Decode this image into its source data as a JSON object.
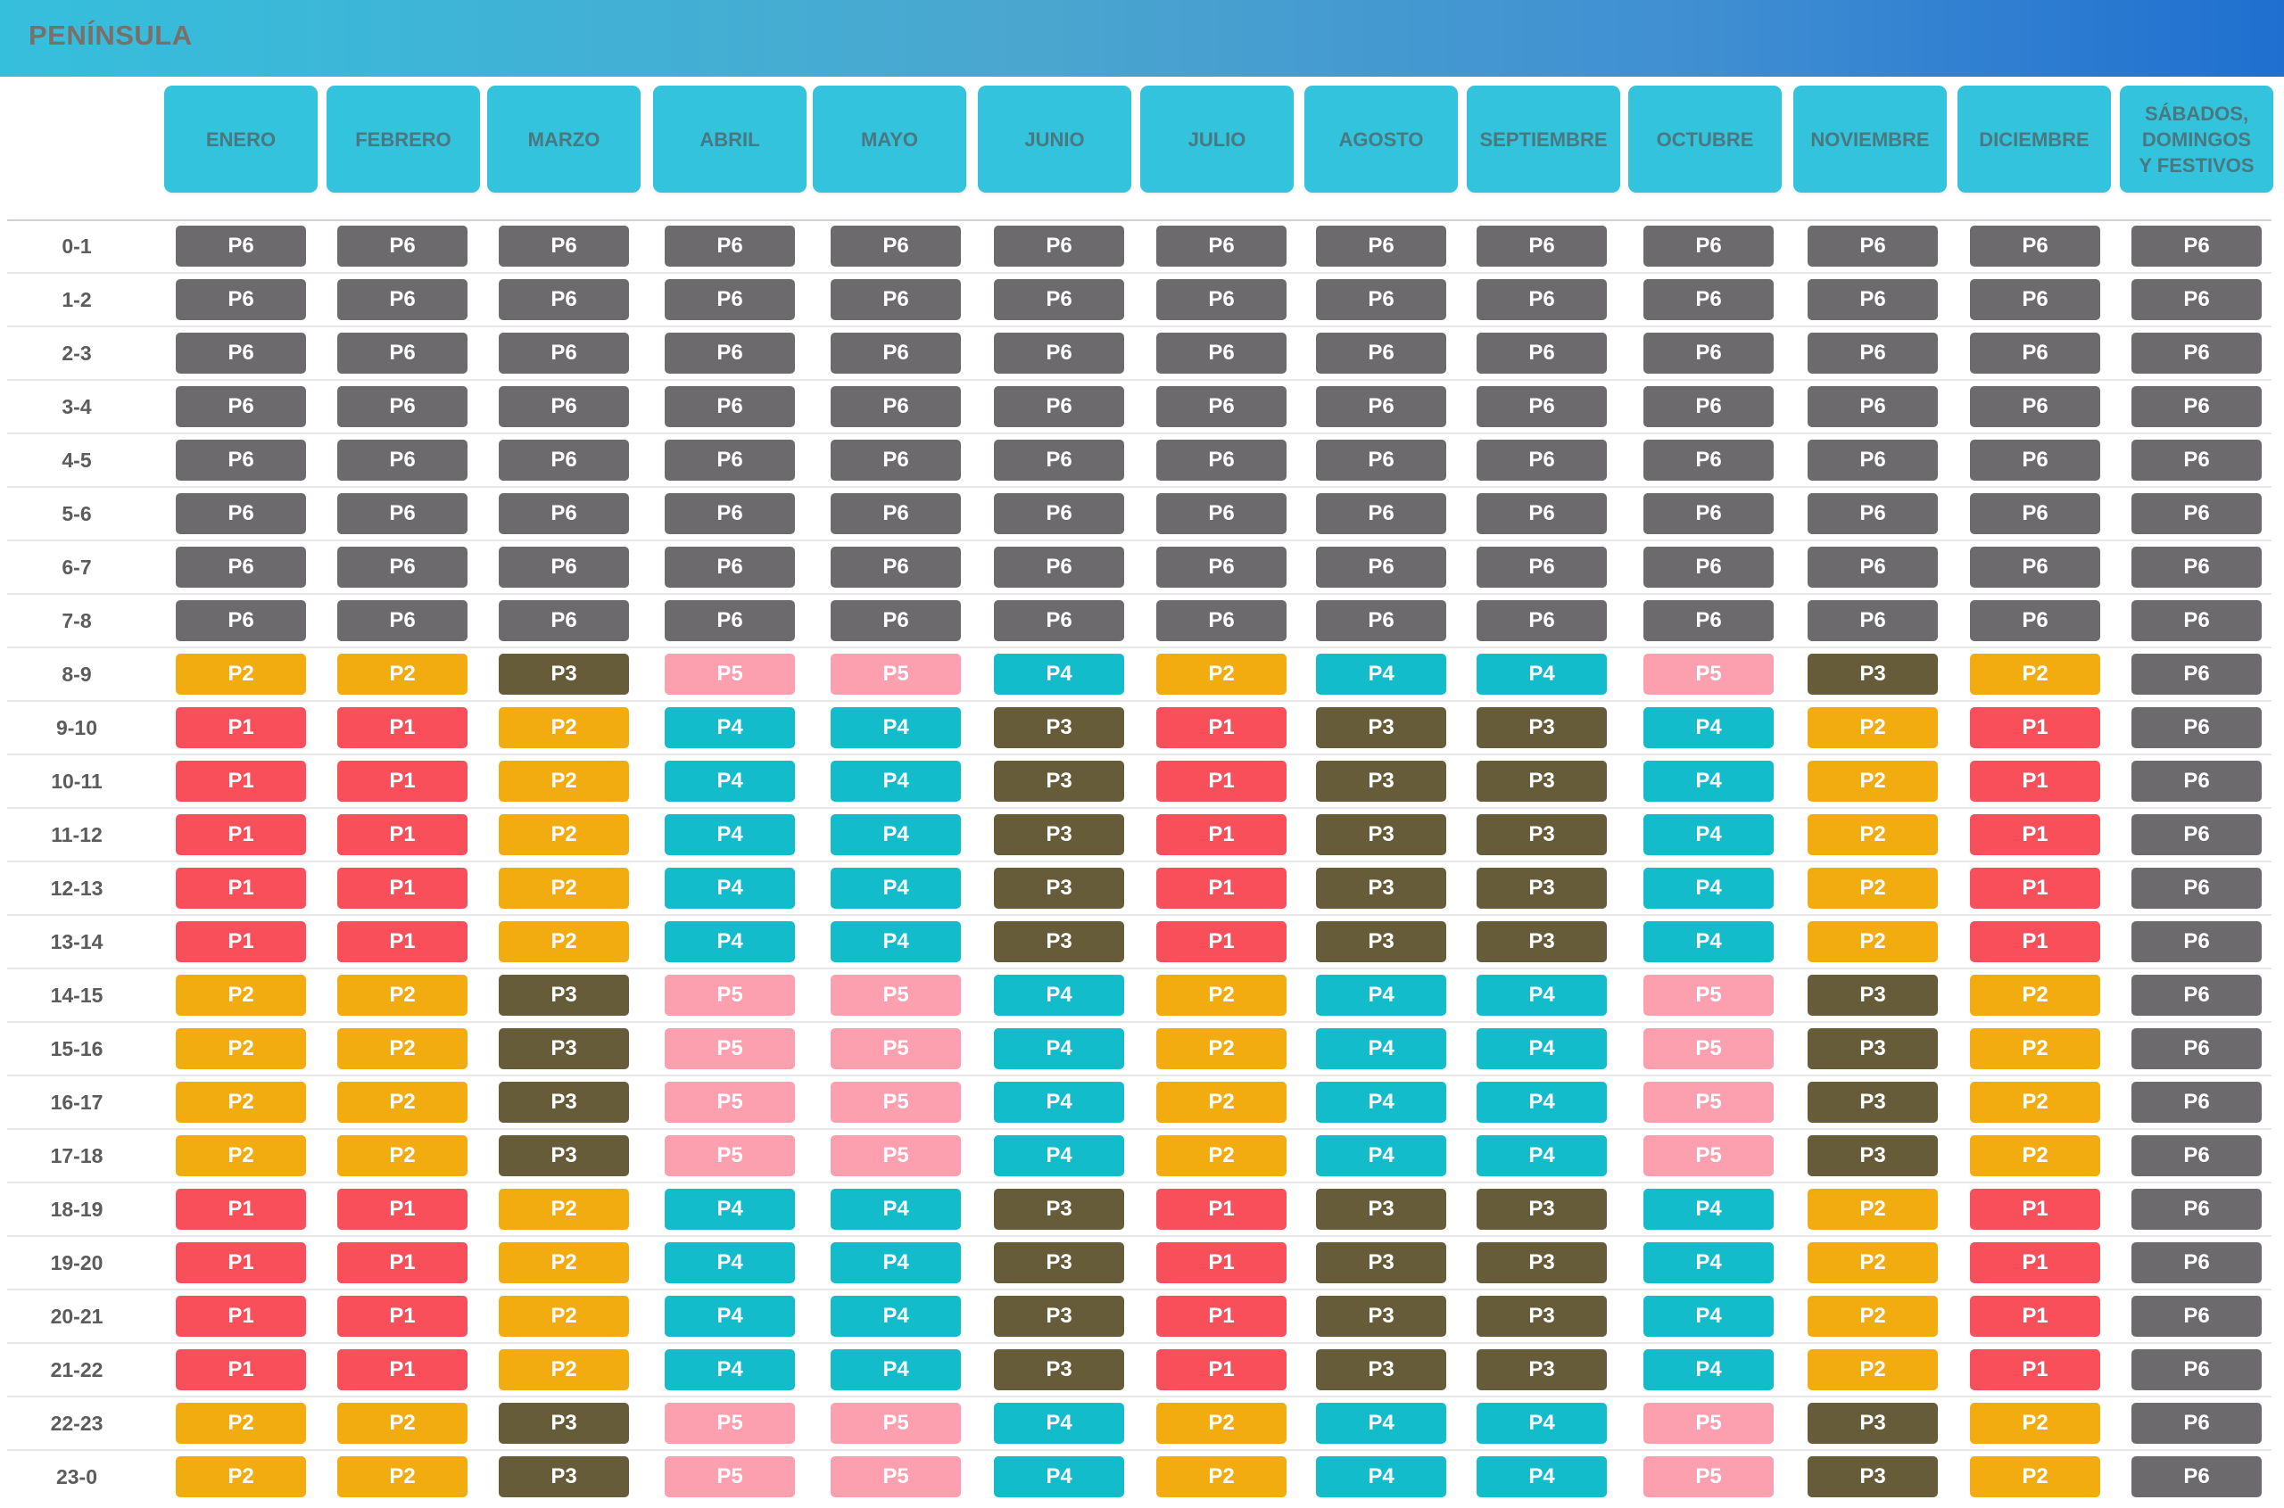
{
  "header": {
    "title": "PENÍNSULA"
  },
  "colors": {
    "P1": "#f94f5b",
    "P2": "#f3ac10",
    "P3": "#665c3a",
    "P4": "#12bccb",
    "P5": "#fc9faf",
    "P6": "#6d6a6e"
  },
  "columns": [
    "ENERO",
    "FEBRERO",
    "MARZO",
    "ABRIL",
    "MAYO",
    "JUNIO",
    "JULIO",
    "AGOSTO",
    "SEPTIEMBRE",
    "OCTUBRE",
    "NOVIEMBRE",
    "DICIEMBRE",
    "SÁBADOS, DOMINGOS Y FESTIVOS"
  ],
  "column_lines": [
    [
      "ENERO"
    ],
    [
      "FEBRERO"
    ],
    [
      "MARZO"
    ],
    [
      "ABRIL"
    ],
    [
      "MAYO"
    ],
    [
      "JUNIO"
    ],
    [
      "JULIO"
    ],
    [
      "AGOSTO"
    ],
    [
      "SEPTIEMBRE"
    ],
    [
      "OCTUBRE"
    ],
    [
      "NOVIEMBRE"
    ],
    [
      "DICIEMBRE"
    ],
    [
      "SÁBADOS,",
      "DOMINGOS",
      "Y FESTIVOS"
    ]
  ],
  "rows": [
    {
      "hour": "0-1",
      "values": [
        "P6",
        "P6",
        "P6",
        "P6",
        "P6",
        "P6",
        "P6",
        "P6",
        "P6",
        "P6",
        "P6",
        "P6",
        "P6"
      ]
    },
    {
      "hour": "1-2",
      "values": [
        "P6",
        "P6",
        "P6",
        "P6",
        "P6",
        "P6",
        "P6",
        "P6",
        "P6",
        "P6",
        "P6",
        "P6",
        "P6"
      ]
    },
    {
      "hour": "2-3",
      "values": [
        "P6",
        "P6",
        "P6",
        "P6",
        "P6",
        "P6",
        "P6",
        "P6",
        "P6",
        "P6",
        "P6",
        "P6",
        "P6"
      ]
    },
    {
      "hour": "3-4",
      "values": [
        "P6",
        "P6",
        "P6",
        "P6",
        "P6",
        "P6",
        "P6",
        "P6",
        "P6",
        "P6",
        "P6",
        "P6",
        "P6"
      ]
    },
    {
      "hour": "4-5",
      "values": [
        "P6",
        "P6",
        "P6",
        "P6",
        "P6",
        "P6",
        "P6",
        "P6",
        "P6",
        "P6",
        "P6",
        "P6",
        "P6"
      ]
    },
    {
      "hour": "5-6",
      "values": [
        "P6",
        "P6",
        "P6",
        "P6",
        "P6",
        "P6",
        "P6",
        "P6",
        "P6",
        "P6",
        "P6",
        "P6",
        "P6"
      ]
    },
    {
      "hour": "6-7",
      "values": [
        "P6",
        "P6",
        "P6",
        "P6",
        "P6",
        "P6",
        "P6",
        "P6",
        "P6",
        "P6",
        "P6",
        "P6",
        "P6"
      ]
    },
    {
      "hour": "7-8",
      "values": [
        "P6",
        "P6",
        "P6",
        "P6",
        "P6",
        "P6",
        "P6",
        "P6",
        "P6",
        "P6",
        "P6",
        "P6",
        "P6"
      ]
    },
    {
      "hour": "8-9",
      "values": [
        "P2",
        "P2",
        "P3",
        "P5",
        "P5",
        "P4",
        "P2",
        "P4",
        "P4",
        "P5",
        "P3",
        "P2",
        "P6"
      ]
    },
    {
      "hour": "9-10",
      "values": [
        "P1",
        "P1",
        "P2",
        "P4",
        "P4",
        "P3",
        "P1",
        "P3",
        "P3",
        "P4",
        "P2",
        "P1",
        "P6"
      ]
    },
    {
      "hour": "10-11",
      "values": [
        "P1",
        "P1",
        "P2",
        "P4",
        "P4",
        "P3",
        "P1",
        "P3",
        "P3",
        "P4",
        "P2",
        "P1",
        "P6"
      ]
    },
    {
      "hour": "11-12",
      "values": [
        "P1",
        "P1",
        "P2",
        "P4",
        "P4",
        "P3",
        "P1",
        "P3",
        "P3",
        "P4",
        "P2",
        "P1",
        "P6"
      ]
    },
    {
      "hour": "12-13",
      "values": [
        "P1",
        "P1",
        "P2",
        "P4",
        "P4",
        "P3",
        "P1",
        "P3",
        "P3",
        "P4",
        "P2",
        "P1",
        "P6"
      ]
    },
    {
      "hour": "13-14",
      "values": [
        "P1",
        "P1",
        "P2",
        "P4",
        "P4",
        "P3",
        "P1",
        "P3",
        "P3",
        "P4",
        "P2",
        "P1",
        "P6"
      ]
    },
    {
      "hour": "14-15",
      "values": [
        "P2",
        "P2",
        "P3",
        "P5",
        "P5",
        "P4",
        "P2",
        "P4",
        "P4",
        "P5",
        "P3",
        "P2",
        "P6"
      ]
    },
    {
      "hour": "15-16",
      "values": [
        "P2",
        "P2",
        "P3",
        "P5",
        "P5",
        "P4",
        "P2",
        "P4",
        "P4",
        "P5",
        "P3",
        "P2",
        "P6"
      ]
    },
    {
      "hour": "16-17",
      "values": [
        "P2",
        "P2",
        "P3",
        "P5",
        "P5",
        "P4",
        "P2",
        "P4",
        "P4",
        "P5",
        "P3",
        "P2",
        "P6"
      ]
    },
    {
      "hour": "17-18",
      "values": [
        "P2",
        "P2",
        "P3",
        "P5",
        "P5",
        "P4",
        "P2",
        "P4",
        "P4",
        "P5",
        "P3",
        "P2",
        "P6"
      ]
    },
    {
      "hour": "18-19",
      "values": [
        "P1",
        "P1",
        "P2",
        "P4",
        "P4",
        "P3",
        "P1",
        "P3",
        "P3",
        "P4",
        "P2",
        "P1",
        "P6"
      ]
    },
    {
      "hour": "19-20",
      "values": [
        "P1",
        "P1",
        "P2",
        "P4",
        "P4",
        "P3",
        "P1",
        "P3",
        "P3",
        "P4",
        "P2",
        "P1",
        "P6"
      ]
    },
    {
      "hour": "20-21",
      "values": [
        "P1",
        "P1",
        "P2",
        "P4",
        "P4",
        "P3",
        "P1",
        "P3",
        "P3",
        "P4",
        "P2",
        "P1",
        "P6"
      ]
    },
    {
      "hour": "21-22",
      "values": [
        "P1",
        "P1",
        "P2",
        "P4",
        "P4",
        "P3",
        "P1",
        "P3",
        "P3",
        "P4",
        "P2",
        "P1",
        "P6"
      ]
    },
    {
      "hour": "22-23",
      "values": [
        "P2",
        "P2",
        "P3",
        "P5",
        "P5",
        "P4",
        "P2",
        "P4",
        "P4",
        "P5",
        "P3",
        "P2",
        "P6"
      ]
    },
    {
      "hour": "23-0",
      "values": [
        "P2",
        "P2",
        "P3",
        "P5",
        "P5",
        "P4",
        "P2",
        "P4",
        "P4",
        "P5",
        "P3",
        "P2",
        "P6"
      ]
    }
  ]
}
